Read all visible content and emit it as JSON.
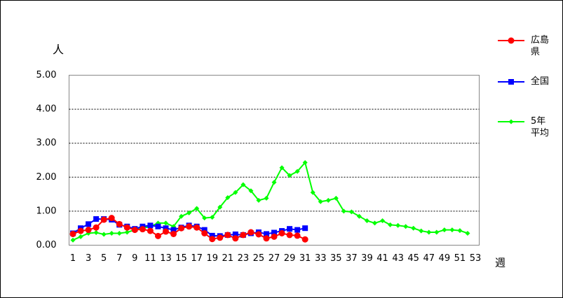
{
  "chart_data": {
    "type": "line",
    "y_label": "人",
    "x_label": "週",
    "x": [
      1,
      2,
      3,
      4,
      5,
      6,
      7,
      8,
      9,
      10,
      11,
      12,
      13,
      14,
      15,
      16,
      17,
      18,
      19,
      20,
      21,
      22,
      23,
      24,
      25,
      26,
      27,
      28,
      29,
      30,
      31,
      32,
      33,
      34,
      35,
      36,
      37,
      38,
      39,
      40,
      41,
      42,
      43,
      44,
      45,
      46,
      47,
      48,
      49,
      50,
      51,
      52,
      53
    ],
    "xlim": [
      0.5,
      53.5
    ],
    "xticks": [
      1,
      3,
      5,
      7,
      9,
      11,
      13,
      15,
      17,
      19,
      21,
      23,
      25,
      27,
      29,
      31,
      33,
      35,
      37,
      39,
      41,
      43,
      45,
      47,
      49,
      51,
      53
    ],
    "ylim": [
      0,
      5
    ],
    "yticks": [
      {
        "value": 0,
        "label": "0.00"
      },
      {
        "value": 1,
        "label": "1.00"
      },
      {
        "value": 2,
        "label": "2.00"
      },
      {
        "value": 3,
        "label": "3.00"
      },
      {
        "value": 4,
        "label": "4.00"
      },
      {
        "value": 5,
        "label": "5.00"
      }
    ],
    "grid": true,
    "legend": "right",
    "series": [
      {
        "name": "広島県",
        "color": "#ff0000",
        "marker": "circle",
        "values": [
          0.33,
          0.42,
          0.45,
          0.52,
          0.75,
          0.8,
          0.62,
          0.52,
          0.45,
          0.47,
          0.42,
          0.27,
          0.4,
          0.33,
          0.5,
          0.55,
          0.52,
          0.35,
          0.18,
          0.22,
          0.3,
          0.2,
          0.3,
          0.38,
          0.32,
          0.2,
          0.25,
          0.35,
          0.3,
          0.28,
          0.17,
          null,
          null,
          null,
          null,
          null,
          null,
          null,
          null,
          null,
          null,
          null,
          null,
          null,
          null,
          null,
          null,
          null,
          null,
          null,
          null,
          null,
          null
        ]
      },
      {
        "name": "全国",
        "color": "#0000ff",
        "marker": "square",
        "values": [
          0.35,
          0.5,
          0.62,
          0.77,
          0.77,
          0.75,
          0.6,
          0.55,
          0.48,
          0.55,
          0.58,
          0.55,
          0.5,
          0.45,
          0.52,
          0.58,
          0.55,
          0.45,
          0.28,
          0.27,
          0.3,
          0.32,
          0.3,
          0.35,
          0.38,
          0.33,
          0.37,
          0.42,
          0.48,
          0.45,
          0.5,
          null,
          null,
          null,
          null,
          null,
          null,
          null,
          null,
          null,
          null,
          null,
          null,
          null,
          null,
          null,
          null,
          null,
          null,
          null,
          null,
          null,
          null
        ]
      },
      {
        "name": "5年平均",
        "color": "#00ff00",
        "marker": "diamond",
        "values": [
          0.15,
          0.25,
          0.35,
          0.37,
          0.32,
          0.35,
          0.35,
          0.38,
          0.45,
          0.5,
          0.55,
          0.65,
          0.65,
          0.55,
          0.85,
          0.95,
          1.08,
          0.8,
          0.82,
          1.12,
          1.4,
          1.55,
          1.78,
          1.6,
          1.32,
          1.38,
          1.85,
          2.28,
          2.05,
          2.17,
          2.43,
          1.55,
          1.28,
          1.32,
          1.38,
          1.0,
          0.98,
          0.85,
          0.72,
          0.65,
          0.72,
          0.6,
          0.58,
          0.55,
          0.5,
          0.42,
          0.38,
          0.38,
          0.45,
          0.45,
          0.43,
          0.35,
          null
        ]
      }
    ]
  }
}
